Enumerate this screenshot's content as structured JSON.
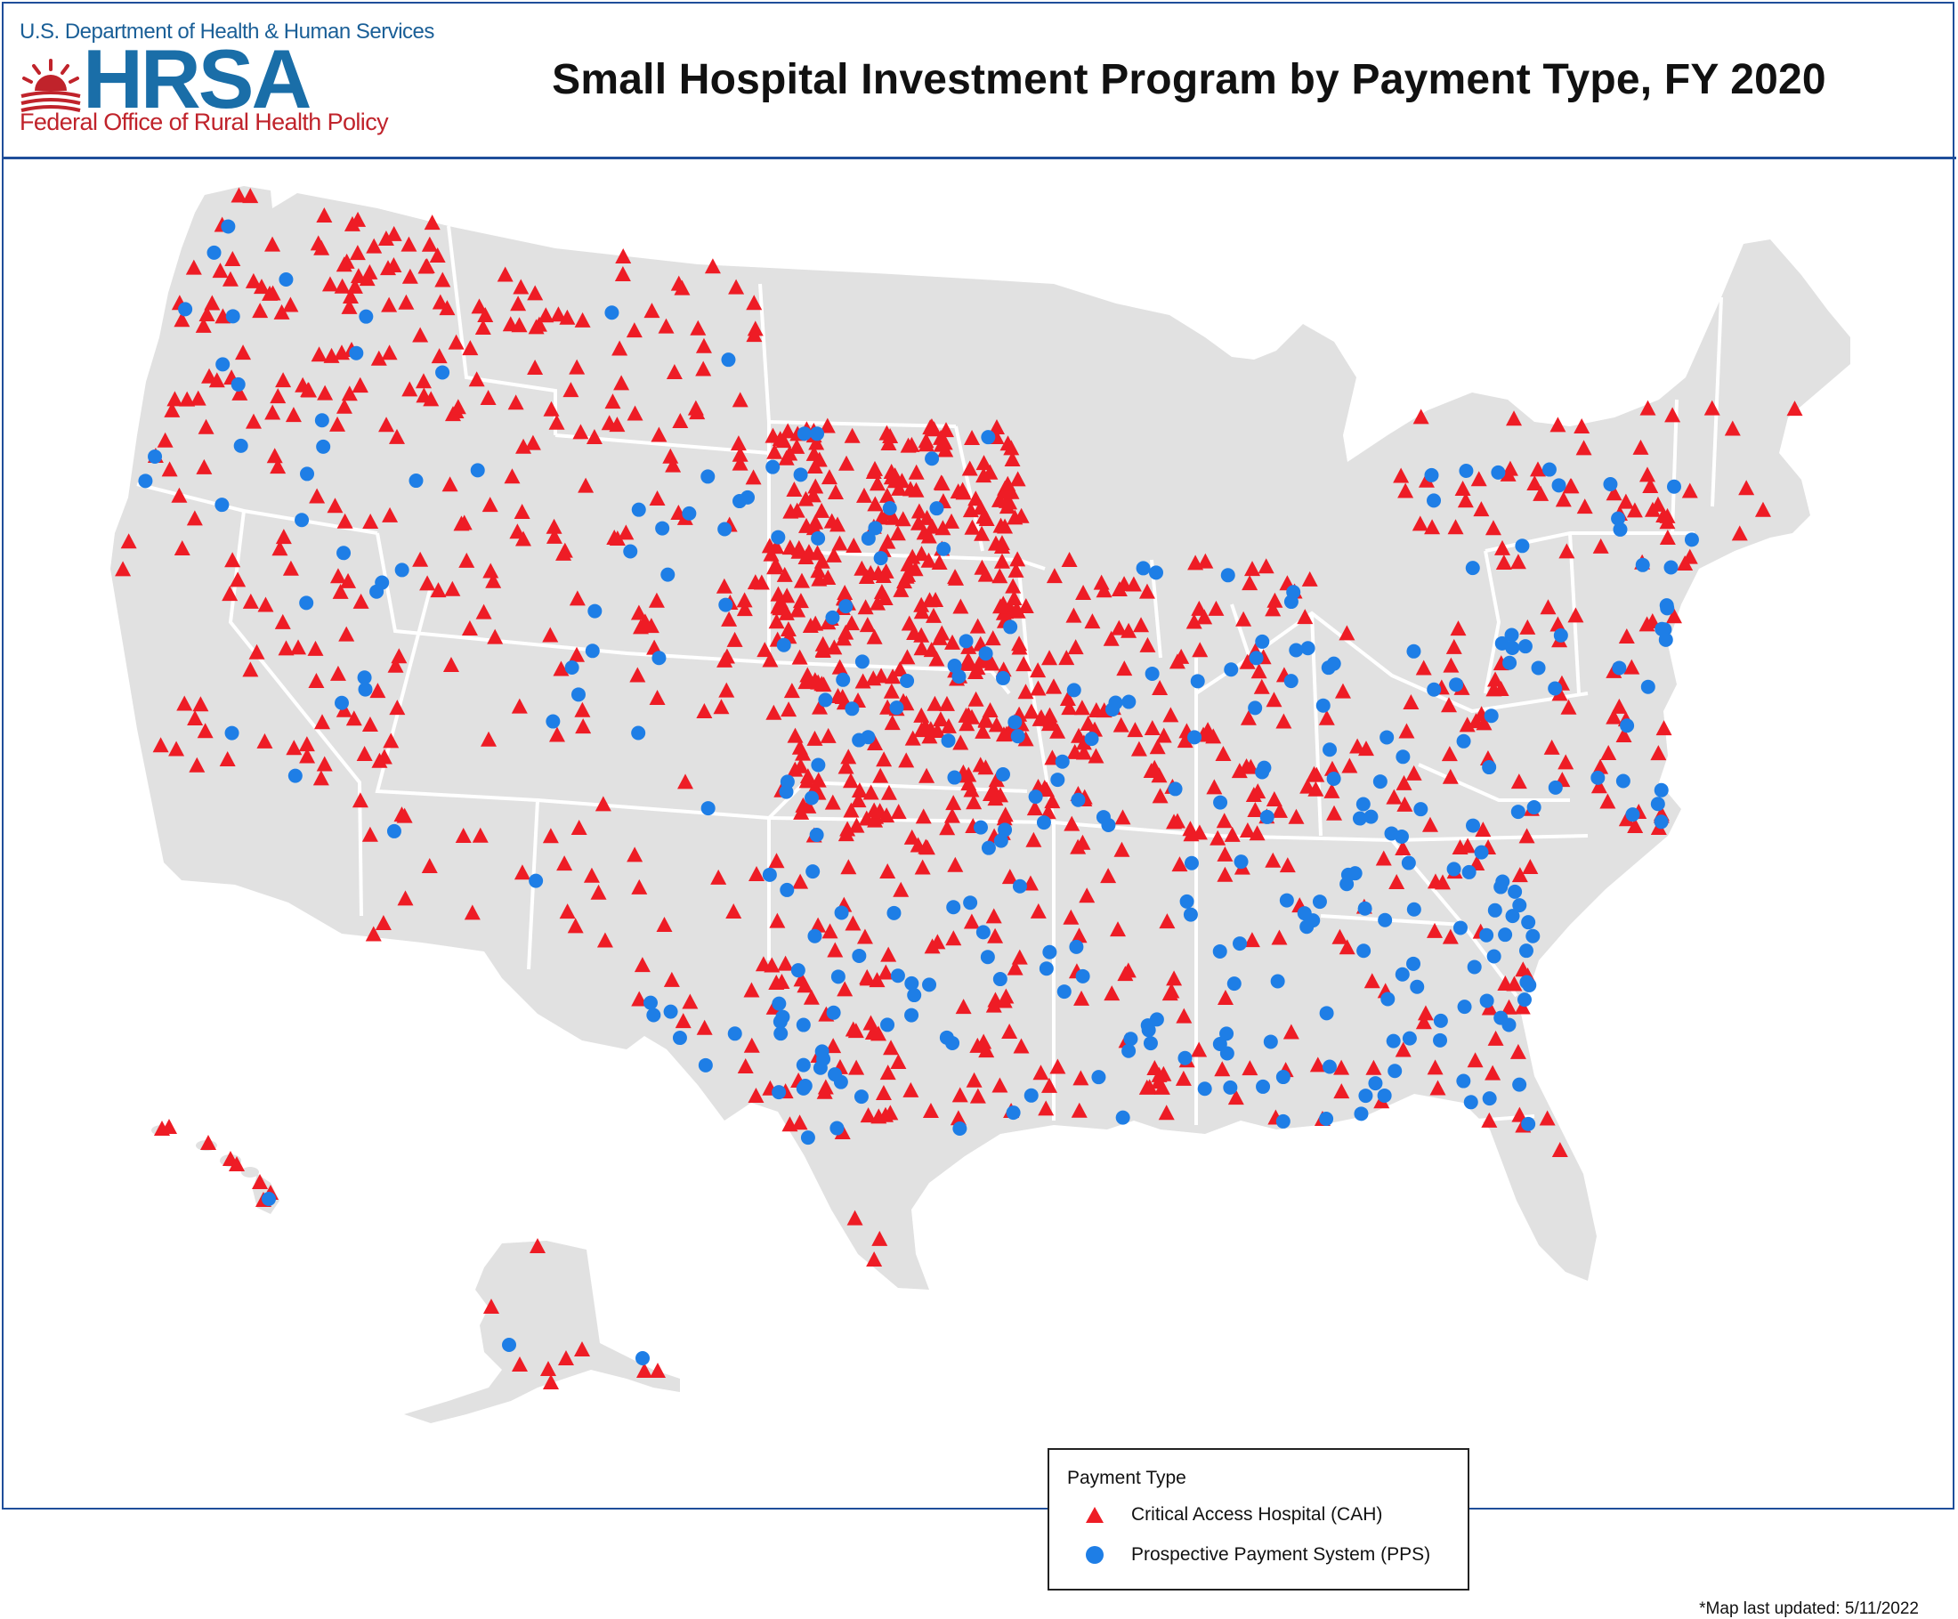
{
  "header": {
    "agency_line": "U.S. Department of Health & Human Services",
    "agency_abbrev": "HRSA",
    "office_line": "Federal Office of Rural Health Policy",
    "title": "Small Hospital Investment Program by Payment Type, FY 2020"
  },
  "legend": {
    "title": "Payment Type",
    "items": [
      {
        "label": "Critical Access Hospital (CAH)",
        "symbol": "triangle",
        "color": "#ee1c25"
      },
      {
        "label": "Prospective Payment System (PPS)",
        "symbol": "circle",
        "color": "#1e7ee6"
      }
    ]
  },
  "footnote": "*Map last updated: 5/11/2022",
  "colors": {
    "frame": "#1f4e9a",
    "land": "#e1e1e1",
    "state_border": "#ffffff",
    "cah": "#ee1c25",
    "pps": "#1e7ee6"
  }
}
